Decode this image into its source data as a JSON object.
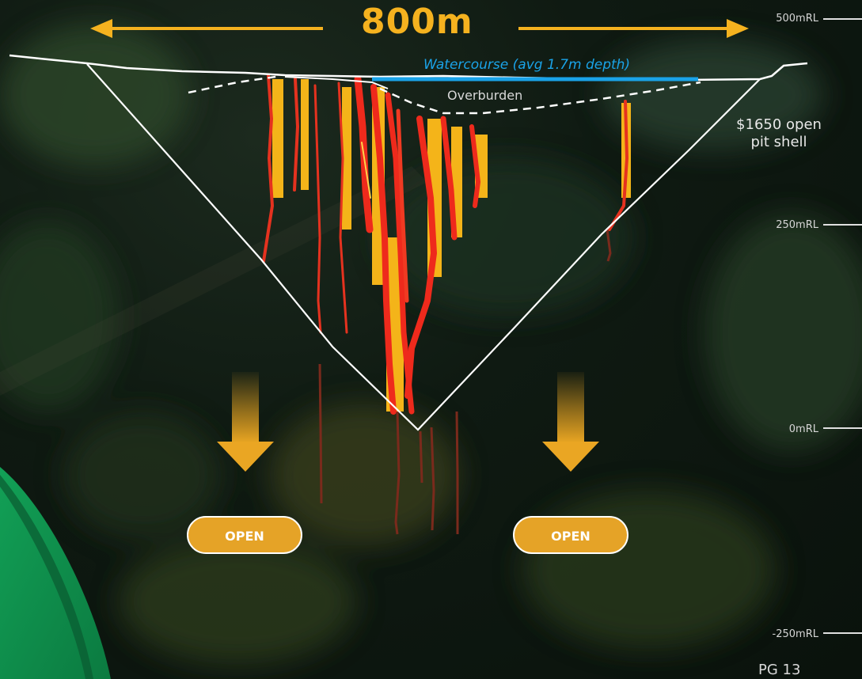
{
  "width_label": "800m",
  "watercourse_label": "Watercourse (avg 1.7m depth)",
  "overburden_label": "Overburden",
  "pit_shell_label": "$1650 open pit shell",
  "elevation_labels": [
    "500mRL",
    "250mRL",
    "0mRL",
    "-250mRL"
  ],
  "open_labels": [
    "OPEN",
    "OPEN"
  ],
  "page_number": "PG 13",
  "colors": {
    "accent_yellow": "#f5b21f",
    "watercourse_blue": "#1aa3e8",
    "high_grade_red": "#ee2a1c",
    "open_orange": "#e5a327",
    "corner_green": "#0e8a4a"
  },
  "icons": [
    "left-arrow-icon",
    "right-arrow-icon",
    "down-arrow-icon"
  ]
}
